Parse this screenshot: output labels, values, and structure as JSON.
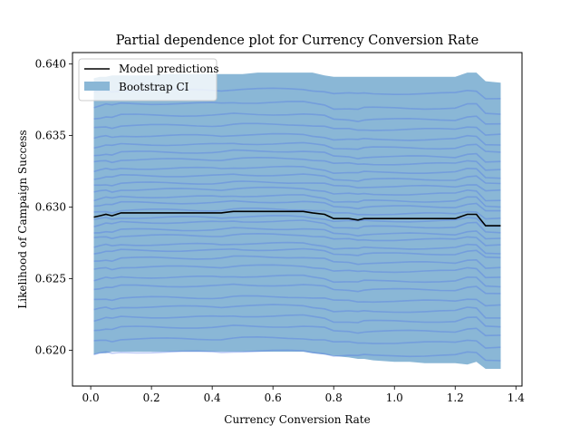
{
  "chart_data": {
    "type": "line",
    "title": "Partial dependence plot for Currency Conversion Rate",
    "xlabel": "Currency Conversion Rate",
    "ylabel": "Likelihood of Campaign Success",
    "xlim": [
      -0.06,
      1.42
    ],
    "ylim": [
      0.6175,
      0.6408
    ],
    "xticks": [
      0.0,
      0.2,
      0.4,
      0.6,
      0.8,
      1.0,
      1.2,
      1.4
    ],
    "xtick_labels": [
      "0.0",
      "0.2",
      "0.4",
      "0.6",
      "0.8",
      "1.0",
      "1.2",
      "1.4"
    ],
    "yticks": [
      0.62,
      0.625,
      0.63,
      0.635,
      0.64
    ],
    "ytick_labels": [
      "0.620",
      "0.625",
      "0.630",
      "0.635",
      "0.640"
    ],
    "legend": {
      "placement": "top-left",
      "entries": [
        "Model predictions",
        "Bootstrap CI"
      ]
    },
    "colors": {
      "line": "#000000",
      "ci_fill": "#8ab7d6",
      "bootstrap_lines": "#4b6fe8"
    },
    "x": [
      0.01,
      0.03,
      0.05,
      0.07,
      0.1,
      0.15,
      0.2,
      0.25,
      0.3,
      0.35,
      0.4,
      0.43,
      0.47,
      0.5,
      0.55,
      0.6,
      0.65,
      0.7,
      0.73,
      0.77,
      0.8,
      0.85,
      0.88,
      0.9,
      0.93,
      1.0,
      1.05,
      1.1,
      1.15,
      1.2,
      1.24,
      1.27,
      1.3,
      1.35
    ],
    "series": [
      {
        "name": "Model predictions",
        "values": [
          0.6293,
          0.6294,
          0.6295,
          0.6294,
          0.6296,
          0.6296,
          0.6296,
          0.6296,
          0.6296,
          0.6296,
          0.6296,
          0.6296,
          0.6297,
          0.6297,
          0.6297,
          0.6297,
          0.6297,
          0.6297,
          0.6296,
          0.6295,
          0.6292,
          0.6292,
          0.6291,
          0.6292,
          0.6292,
          0.6292,
          0.6292,
          0.6292,
          0.6292,
          0.6292,
          0.6295,
          0.6295,
          0.6287,
          0.6287
        ]
      }
    ],
    "ci_upper": [
      0.639,
      0.6391,
      0.6391,
      0.6392,
      0.6392,
      0.6392,
      0.6392,
      0.6393,
      0.6393,
      0.6393,
      0.6393,
      0.6393,
      0.6393,
      0.6393,
      0.6394,
      0.6394,
      0.6394,
      0.6394,
      0.6394,
      0.6392,
      0.6391,
      0.6391,
      0.6391,
      0.6391,
      0.6391,
      0.6391,
      0.6391,
      0.6391,
      0.6391,
      0.6391,
      0.6394,
      0.6394,
      0.6388,
      0.6387
    ],
    "ci_lower": [
      0.6197,
      0.6198,
      0.6198,
      0.6199,
      0.6199,
      0.6199,
      0.6199,
      0.6199,
      0.6199,
      0.6199,
      0.6199,
      0.6199,
      0.6199,
      0.6199,
      0.6199,
      0.6199,
      0.6199,
      0.6199,
      0.6198,
      0.6197,
      0.6196,
      0.6195,
      0.6194,
      0.6194,
      0.6193,
      0.6192,
      0.6192,
      0.6191,
      0.6191,
      0.6191,
      0.619,
      0.6192,
      0.6187,
      0.6187
    ],
    "bootstrap_line_levels": [
      0.6197,
      0.6206,
      0.6214,
      0.6221,
      0.6228,
      0.6235,
      0.6243,
      0.6249,
      0.6256,
      0.6262,
      0.6268,
      0.6272,
      0.6278,
      0.6282,
      0.6287,
      0.6291,
      0.6296,
      0.6301,
      0.6305,
      0.631,
      0.6315,
      0.632,
      0.6325,
      0.6331,
      0.6336,
      0.6342,
      0.6348,
      0.6355,
      0.6362,
      0.637,
      0.638
    ]
  }
}
